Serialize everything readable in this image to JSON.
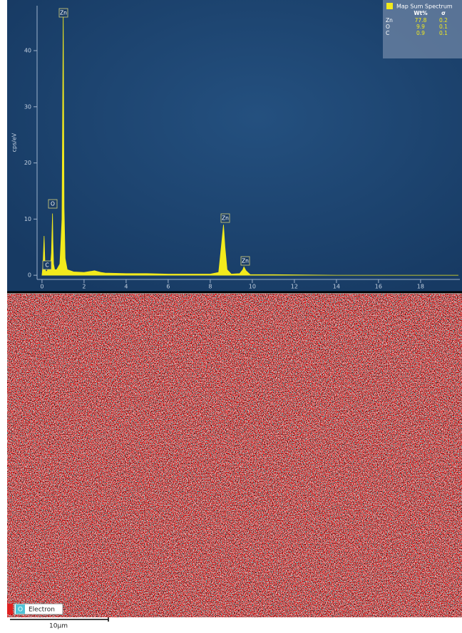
{
  "chart_data": {
    "type": "area",
    "y_label": "cps/eV",
    "series": [
      {
        "name": "Map Sum Spectrum",
        "color": "#f2ea1c",
        "x": [
          0,
          0.05,
          0.1,
          0.15,
          0.2,
          0.25,
          0.3,
          0.4,
          0.45,
          0.5,
          0.52,
          0.55,
          0.6,
          0.7,
          0.85,
          0.95,
          1.01,
          1.05,
          1.1,
          1.2,
          1.5,
          2,
          2.5,
          2.6,
          2.8,
          3,
          4,
          5,
          6,
          7,
          8,
          8.4,
          8.55,
          8.63,
          8.7,
          8.8,
          9.0,
          9.4,
          9.55,
          9.6,
          9.7,
          9.9,
          11,
          14,
          17,
          19.8
        ],
        "values": [
          0,
          2,
          7,
          1,
          0.6,
          0.8,
          1.2,
          1.5,
          4,
          11,
          6,
          2,
          1,
          1,
          2,
          10,
          47,
          12,
          3,
          1,
          0.6,
          0.5,
          0.8,
          0.7,
          0.5,
          0.4,
          0.3,
          0.3,
          0.2,
          0.2,
          0.2,
          0.5,
          6,
          9,
          5,
          1,
          0.2,
          0.3,
          1,
          1.5,
          0.8,
          0.1,
          0.1,
          0,
          0,
          0
        ]
      }
    ],
    "xlim": [
      -0.2,
      19.8
    ],
    "xticks": [
      0,
      2,
      4,
      6,
      8,
      10,
      12,
      14,
      16,
      18
    ],
    "ylim": [
      -1,
      48
    ],
    "yticks": [
      0,
      10,
      20,
      30,
      40
    ],
    "annotations": [
      "Zn",
      "O",
      "C",
      "Zn",
      "Zn"
    ]
  },
  "results_table": {
    "columns": [
      "Wt%",
      "σ"
    ],
    "rows": [
      [
        "Zn",
        77.8,
        0.2
      ],
      [
        "O",
        9.9,
        0.1
      ],
      [
        "C",
        0.9,
        0.1
      ]
    ]
  },
  "map_legend": [
    "O",
    "Electron"
  ],
  "scale_bar": "10µm"
}
